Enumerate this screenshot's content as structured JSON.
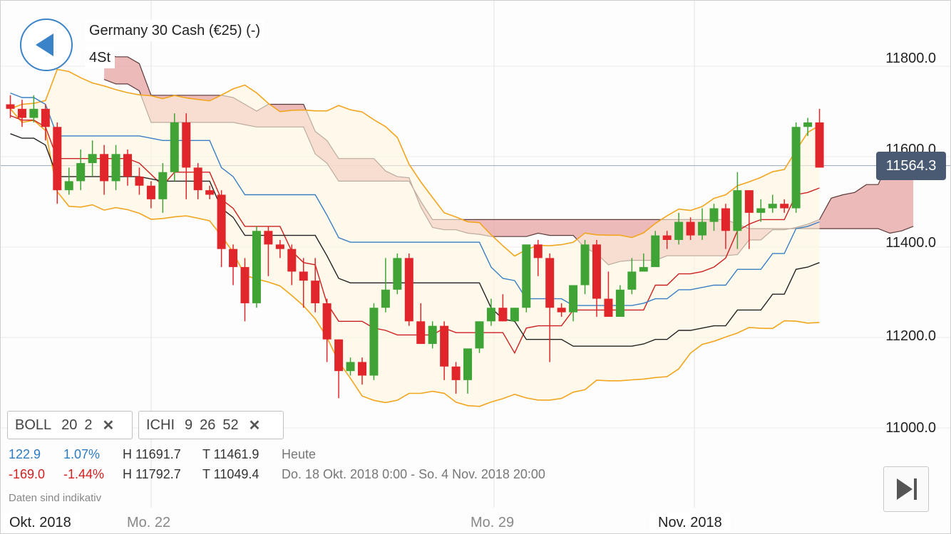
{
  "header": {
    "instrument": "Germany 30 Cash (€25) (-)",
    "timeframe": "4St"
  },
  "indicators": [
    {
      "name": "BOLL",
      "p1": "20",
      "p2": "2"
    },
    {
      "name": "ICHI",
      "p1": "9",
      "p2": "26",
      "p3": "52"
    }
  ],
  "stats": {
    "today": {
      "change": "122.9",
      "pct": "1.07%",
      "high": "H 11691.7",
      "low": "T 11461.9",
      "range": "Heute"
    },
    "period": {
      "change": "-169.0",
      "pct": "-1.44%",
      "high": "H 11792.7",
      "low": "T 11049.4",
      "range": "Do. 18 Okt. 2018 0:00 - So. 4 Nov. 2018 20:00"
    }
  },
  "note": "Daten sind indikativ",
  "last_price": "11564.3",
  "icons": {
    "back": "back-arrow-icon",
    "close": "close-icon",
    "skip": "skip-to-end-icon"
  },
  "colors": {
    "up": "#3fa435",
    "down": "#e0262a",
    "cloud": "#e9a9a9",
    "boll_band": "#f2a51e",
    "tenkan": "#cc2020",
    "kijun": "#222222",
    "chikou": "#3a7fc4",
    "accent": "#3b83c8"
  },
  "chart_data": {
    "type": "candlestick",
    "title": "Germany 30 Cash (€25) (-)",
    "y_ticks": [
      11000,
      11200,
      11400,
      11600,
      11800
    ],
    "y_tick_labels": [
      "11000.0",
      "11200.0",
      "11400.0",
      "11600.0",
      "11800.0"
    ],
    "ylim": [
      10930,
      11930
    ],
    "x_labels": [
      {
        "label": "Okt. 2018",
        "index": -1
      },
      {
        "label": "Mo. 22",
        "index": 8
      },
      {
        "label": "Mo. 29",
        "index": 36
      },
      {
        "label": "Nov. 2018",
        "index": 52
      }
    ],
    "last_price": 11564.3,
    "candles": [
      [
        11700,
        11690,
        11720,
        11670
      ],
      [
        11690,
        11670,
        11710,
        11650
      ],
      [
        11670,
        11690,
        11720,
        11660
      ],
      [
        11690,
        11650,
        11700,
        11620
      ],
      [
        11650,
        11510,
        11660,
        11480
      ],
      [
        11510,
        11530,
        11560,
        11500
      ],
      [
        11530,
        11570,
        11600,
        11510
      ],
      [
        11570,
        11590,
        11620,
        11540
      ],
      [
        11590,
        11530,
        11610,
        11500
      ],
      [
        11530,
        11590,
        11610,
        11510
      ],
      [
        11590,
        11540,
        11600,
        11520
      ],
      [
        11540,
        11520,
        11560,
        11500
      ],
      [
        11520,
        11490,
        11530,
        11470
      ],
      [
        11490,
        11550,
        11570,
        11460
      ],
      [
        11550,
        11660,
        11680,
        11530
      ],
      [
        11660,
        11560,
        11680,
        11490
      ],
      [
        11560,
        11510,
        11570,
        11490
      ],
      [
        11510,
        11500,
        11520,
        11490
      ],
      [
        11500,
        11380,
        11510,
        11340
      ],
      [
        11380,
        11340,
        11390,
        11300
      ],
      [
        11340,
        11260,
        11360,
        11220
      ],
      [
        11260,
        11420,
        11430,
        11250
      ],
      [
        11420,
        11390,
        11430,
        11320
      ],
      [
        11390,
        11380,
        11400,
        11360
      ],
      [
        11380,
        11330,
        11390,
        11300
      ],
      [
        11330,
        11310,
        11360,
        11250
      ],
      [
        11310,
        11260,
        11360,
        11240
      ],
      [
        11260,
        11180,
        11270,
        11130
      ],
      [
        11180,
        11110,
        11180,
        11050
      ],
      [
        11110,
        11130,
        11140,
        11100
      ],
      [
        11130,
        11100,
        11140,
        11080
      ],
      [
        11100,
        11250,
        11260,
        11090
      ],
      [
        11250,
        11290,
        11360,
        11240
      ],
      [
        11290,
        11360,
        11370,
        11280
      ],
      [
        11360,
        11220,
        11370,
        11210
      ],
      [
        11220,
        11170,
        11260,
        11170
      ],
      [
        11170,
        11210,
        11220,
        11160
      ],
      [
        11210,
        11120,
        11220,
        11090
      ],
      [
        11120,
        11090,
        11130,
        11060
      ],
      [
        11090,
        11160,
        11160,
        11060
      ],
      [
        11160,
        11220,
        11220,
        11150
      ],
      [
        11220,
        11250,
        11270,
        11210
      ],
      [
        11250,
        11220,
        11280,
        11220
      ],
      [
        11220,
        11250,
        11250,
        11230
      ],
      [
        11250,
        11390,
        11390,
        11240
      ],
      [
        11390,
        11360,
        11400,
        11320
      ],
      [
        11360,
        11250,
        11370,
        11130
      ],
      [
        11250,
        11240,
        11260,
        11230
      ],
      [
        11240,
        11300,
        11300,
        11220
      ],
      [
        11300,
        11390,
        11400,
        11280
      ],
      [
        11390,
        11270,
        11400,
        11230
      ],
      [
        11270,
        11230,
        11330,
        11230
      ],
      [
        11230,
        11290,
        11300,
        11240
      ],
      [
        11290,
        11330,
        11360,
        11280
      ],
      [
        11330,
        11340,
        11370,
        11330
      ],
      [
        11340,
        11410,
        11420,
        11360
      ],
      [
        11410,
        11400,
        11420,
        11380
      ],
      [
        11400,
        11440,
        11460,
        11390
      ],
      [
        11440,
        11410,
        11450,
        11400
      ],
      [
        11410,
        11440,
        11470,
        11400
      ],
      [
        11440,
        11470,
        11480,
        11420
      ],
      [
        11470,
        11420,
        11480,
        11380
      ],
      [
        11420,
        11510,
        11550,
        11380
      ],
      [
        11510,
        11460,
        11510,
        11380
      ],
      [
        11460,
        11470,
        11490,
        11440
      ],
      [
        11470,
        11480,
        11500,
        11460
      ],
      [
        11480,
        11470,
        11490,
        11460
      ],
      [
        11470,
        11650,
        11660,
        11460
      ],
      [
        11650,
        11660,
        11670,
        11630
      ],
      [
        11660,
        11560,
        11690,
        11560
      ]
    ]
  }
}
